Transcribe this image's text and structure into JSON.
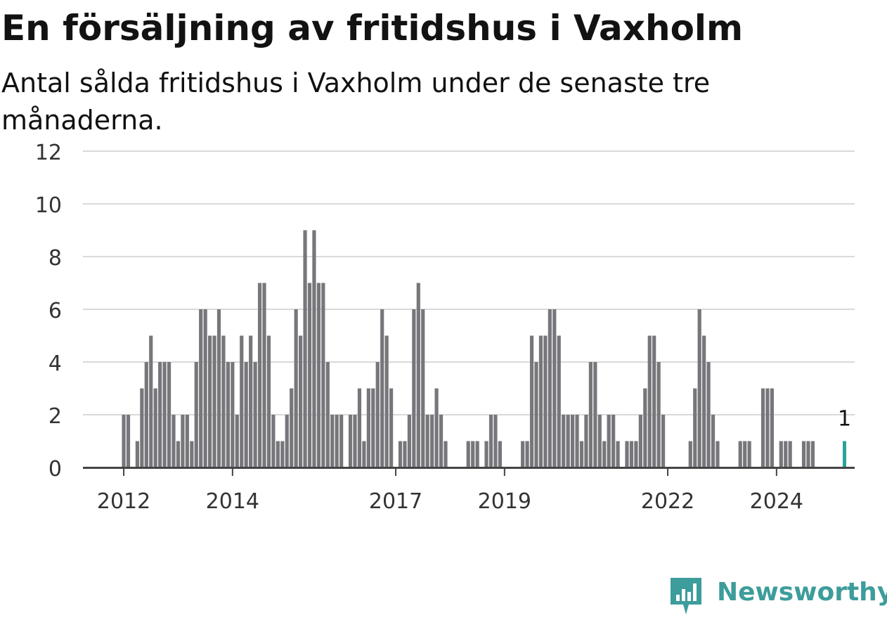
{
  "title": "En försäljning av fritidshus i Vaxholm",
  "subtitle": "Antal sålda fritidshus i Vaxholm under de senaste tre månaderna.",
  "brand": {
    "name": "Newsworthy",
    "icon": "newsworthy-logo-icon",
    "color": "#3d9c9c"
  },
  "chart_data": {
    "type": "bar",
    "title": "En försäljning av fritidshus i Vaxholm",
    "subtitle": "Antal sålda fritidshus i Vaxholm under de senaste tre månaderna.",
    "ylim": [
      0,
      12
    ],
    "yticks": [
      "0",
      "2",
      "4",
      "6",
      "8",
      "10",
      "12"
    ],
    "grid": true,
    "bar_color": "#77767b",
    "highlight_color": "#2aa39b",
    "x_start": "2011-12",
    "xticks": [
      {
        "label": "2012",
        "date": "2012-01"
      },
      {
        "label": "2014",
        "date": "2014-01"
      },
      {
        "label": "2017",
        "date": "2017-01"
      },
      {
        "label": "2019",
        "date": "2019-01"
      },
      {
        "label": "2022",
        "date": "2022-01"
      },
      {
        "label": "2024",
        "date": "2024-01"
      }
    ],
    "values": [
      0,
      2,
      2,
      0,
      1,
      3,
      4,
      5,
      3,
      4,
      4,
      4,
      2,
      1,
      2,
      2,
      1,
      4,
      6,
      6,
      5,
      5,
      6,
      5,
      4,
      4,
      2,
      5,
      4,
      5,
      4,
      7,
      7,
      5,
      2,
      1,
      1,
      2,
      3,
      6,
      5,
      9,
      7,
      9,
      7,
      7,
      4,
      2,
      2,
      2,
      0,
      2,
      2,
      3,
      1,
      3,
      3,
      4,
      6,
      5,
      3,
      0,
      1,
      1,
      2,
      6,
      7,
      6,
      2,
      2,
      3,
      2,
      1,
      0,
      0,
      0,
      0,
      1,
      1,
      1,
      0,
      1,
      2,
      2,
      1,
      0,
      0,
      0,
      0,
      1,
      1,
      5,
      4,
      5,
      5,
      6,
      6,
      5,
      2,
      2,
      2,
      2,
      1,
      2,
      4,
      4,
      2,
      1,
      2,
      2,
      1,
      0,
      1,
      1,
      1,
      2,
      3,
      5,
      5,
      4,
      2,
      0,
      0,
      0,
      0,
      0,
      1,
      3,
      6,
      5,
      4,
      2,
      1,
      0,
      0,
      0,
      0,
      1,
      1,
      1,
      0,
      0,
      3,
      3,
      3,
      0,
      1,
      1,
      1,
      0,
      0,
      1,
      1,
      1,
      0,
      0,
      0,
      0,
      0,
      0,
      1
    ],
    "highlight_label": "1"
  }
}
